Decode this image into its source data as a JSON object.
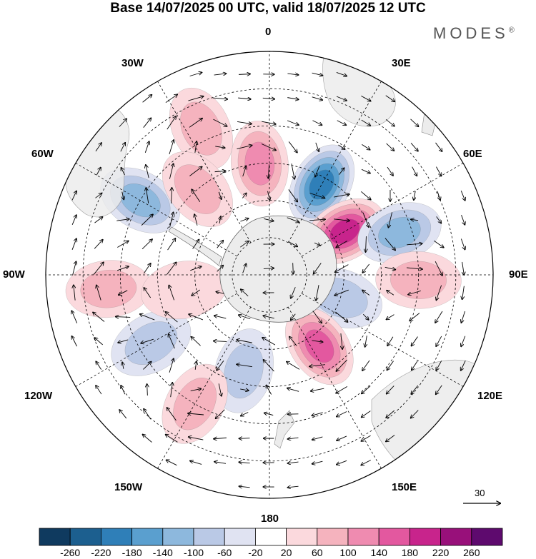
{
  "title": "Base 14/07/2025 00 UTC, valid 18/07/2025 12 UTC",
  "brand": "MODES",
  "brand_mark": "®",
  "longitude_labels": {
    "lon_0": "0",
    "lon_30E": "30E",
    "lon_60E": "60E",
    "lon_90E": "90E",
    "lon_120E": "120E",
    "lon_150E": "150E",
    "lon_180": "180",
    "lon_150W": "150W",
    "lon_120W": "120W",
    "lon_90W": "90W",
    "lon_60W": "60W",
    "lon_30W": "30W"
  },
  "vector_scale": {
    "label": "30"
  },
  "colorbar": {
    "ticks": [
      "-260",
      "-220",
      "-180",
      "-140",
      "-100",
      "-60",
      "-20",
      "20",
      "60",
      "100",
      "140",
      "180",
      "220",
      "260"
    ],
    "colors": [
      "#0f3a5f",
      "#1c5f8f",
      "#2f7fb8",
      "#5a9fcf",
      "#8db8dd",
      "#bac9e6",
      "#e0e3f2",
      "#ffffff",
      "#fbd9dd",
      "#f5b3be",
      "#ef8bb0",
      "#e3589f",
      "#c8248c",
      "#98107a",
      "#5e0a6e"
    ]
  },
  "anomaly_centers": [
    {
      "lon": -5,
      "lat": -45,
      "value": 130
    },
    {
      "lon": 30,
      "lat": -48,
      "value": -200
    },
    {
      "lon": 60,
      "lat": -55,
      "value": 200
    },
    {
      "lon": 72,
      "lat": -35,
      "value": -100
    },
    {
      "lon": 92,
      "lat": -30,
      "value": 80
    },
    {
      "lon": 108,
      "lat": -60,
      "value": -90
    },
    {
      "lon": 145,
      "lat": -55,
      "value": 170
    },
    {
      "lon": -165,
      "lat": -50,
      "value": -70
    },
    {
      "lon": -150,
      "lat": -30,
      "value": 60
    },
    {
      "lon": -120,
      "lat": -35,
      "value": -80
    },
    {
      "lon": -95,
      "lat": -25,
      "value": 70
    },
    {
      "lon": -60,
      "lat": -30,
      "value": -120
    },
    {
      "lon": -25,
      "lat": -25,
      "value": 60
    },
    {
      "lon": -40,
      "lat": -45,
      "value": 60
    },
    {
      "lon": -100,
      "lat": -55,
      "value": 40
    }
  ]
}
